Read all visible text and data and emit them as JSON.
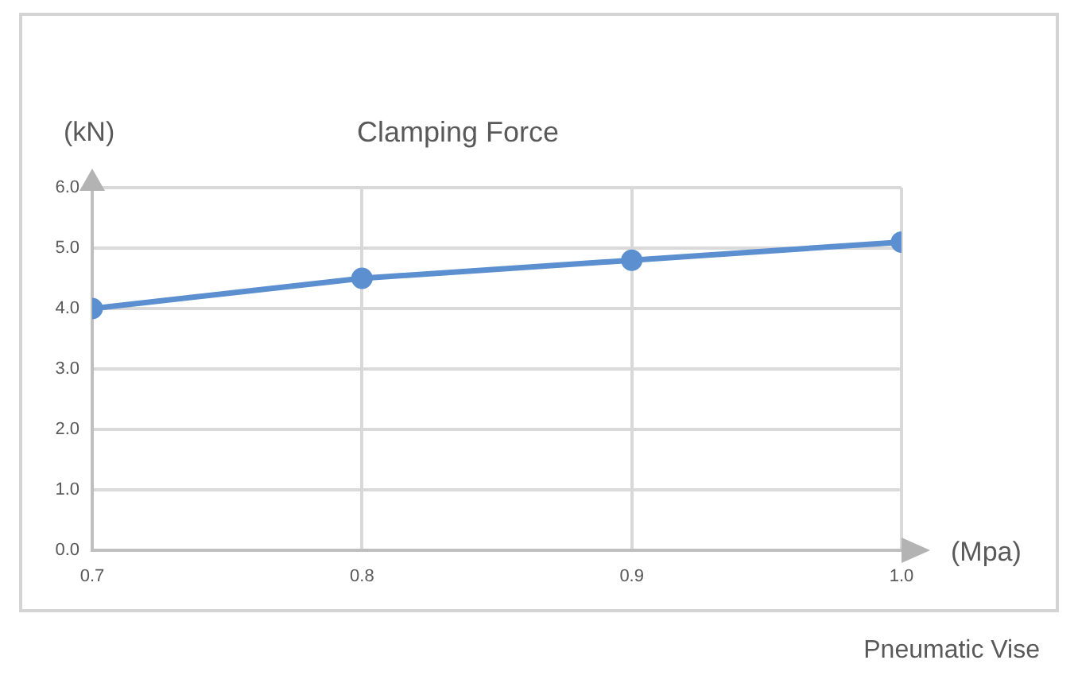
{
  "chart_data": {
    "type": "line",
    "title": "Clamping Force",
    "xlabel": "(Mpa)",
    "ylabel": "(kN)",
    "x": [
      0.7,
      0.8,
      0.9,
      1.0
    ],
    "series": [
      {
        "color": "#5b8fd0",
        "values": [
          4.0,
          4.5,
          4.8,
          5.1
        ]
      }
    ],
    "xlim": [
      0.7,
      1.0
    ],
    "xticks": [
      {
        "value": 0.7,
        "label": "0.7"
      },
      {
        "value": 0.8,
        "label": "0.8"
      },
      {
        "value": 0.9,
        "label": "0.9"
      },
      {
        "value": 1.0,
        "label": "1.0"
      }
    ],
    "ylim": [
      0,
      6
    ],
    "yticks": [
      {
        "value": 0,
        "label": "0.0"
      },
      {
        "value": 1,
        "label": "1.0"
      },
      {
        "value": 2,
        "label": "2.0"
      },
      {
        "value": 3,
        "label": "3.0"
      },
      {
        "value": 4,
        "label": "4.0"
      },
      {
        "value": 5,
        "label": "5.0"
      },
      {
        "value": 6,
        "label": "6.0"
      }
    ],
    "grid": true,
    "marker": "circle",
    "line_style": "solid",
    "annotations": [
      "Pneumatic Vise"
    ]
  }
}
